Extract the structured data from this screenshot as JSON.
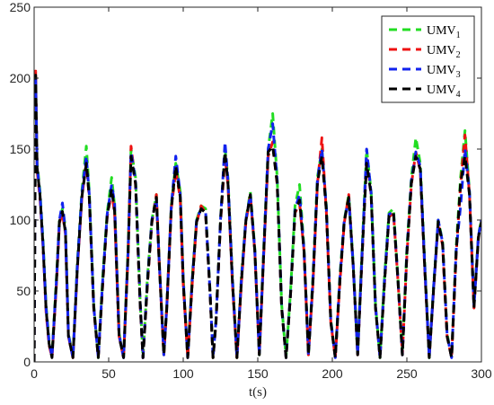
{
  "chart_data": {
    "type": "line",
    "title": "",
    "xlabel": "t(s)",
    "ylabel": "",
    "xlim": [
      0,
      300
    ],
    "ylim": [
      0,
      250
    ],
    "xticks": [
      0,
      50,
      100,
      150,
      200,
      250,
      300
    ],
    "yticks": [
      0,
      50,
      100,
      150,
      200,
      250
    ],
    "grid": false,
    "legend_position": "top-right",
    "series": [
      {
        "name": "UMV1",
        "label_base": "UMV",
        "label_sub": "1",
        "color": "#22dd22",
        "x": [
          0,
          1,
          2,
          4,
          6,
          8,
          10,
          12,
          15,
          17,
          19,
          21,
          23,
          26,
          29,
          32,
          35,
          37,
          40,
          43,
          46,
          49,
          52,
          54,
          57,
          60,
          63,
          65,
          68,
          71,
          73,
          76,
          79,
          82,
          84,
          87,
          89,
          92,
          95,
          98,
          100,
          103,
          106,
          109,
          112,
          115,
          118,
          120,
          122,
          125,
          128,
          130,
          133,
          136,
          139,
          142,
          145,
          148,
          151,
          154,
          157,
          160,
          163,
          166,
          169,
          172,
          175,
          178,
          181,
          184,
          187,
          190,
          193,
          196,
          199,
          202,
          205,
          208,
          211,
          214,
          217,
          220,
          223,
          226,
          229,
          232,
          235,
          238,
          241,
          244,
          247,
          250,
          253,
          256,
          259,
          262,
          265,
          268,
          271,
          274,
          277,
          280,
          283,
          286,
          289,
          292,
          295,
          298,
          300
        ],
        "y": [
          0,
          195,
          140,
          120,
          85,
          40,
          15,
          5,
          60,
          100,
          108,
          95,
          20,
          3,
          70,
          120,
          152,
          120,
          40,
          3,
          60,
          105,
          130,
          110,
          20,
          3,
          80,
          150,
          130,
          45,
          3,
          60,
          100,
          118,
          70,
          5,
          40,
          110,
          140,
          120,
          60,
          3,
          60,
          100,
          110,
          108,
          50,
          3,
          30,
          100,
          150,
          130,
          60,
          3,
          60,
          100,
          120,
          80,
          5,
          80,
          150,
          175,
          130,
          40,
          3,
          50,
          110,
          125,
          80,
          5,
          60,
          130,
          150,
          110,
          30,
          3,
          60,
          100,
          118,
          70,
          5,
          80,
          150,
          120,
          40,
          3,
          60,
          105,
          108,
          60,
          5,
          80,
          130,
          158,
          140,
          70,
          3,
          55,
          100,
          85,
          20,
          3,
          80,
          130,
          163,
          120,
          40,
          90,
          100
        ]
      },
      {
        "name": "UMV2",
        "label_base": "UMV",
        "label_sub": "2",
        "color": "#ee1111",
        "x": [
          0,
          1,
          2,
          4,
          6,
          8,
          10,
          12,
          15,
          17,
          19,
          21,
          23,
          26,
          29,
          32,
          35,
          37,
          40,
          43,
          46,
          49,
          52,
          54,
          57,
          60,
          63,
          65,
          68,
          71,
          73,
          76,
          79,
          82,
          84,
          87,
          89,
          92,
          95,
          98,
          100,
          103,
          106,
          109,
          112,
          115,
          118,
          120,
          122,
          125,
          128,
          130,
          133,
          136,
          139,
          142,
          145,
          148,
          151,
          154,
          157,
          160,
          163,
          166,
          169,
          172,
          175,
          178,
          181,
          184,
          187,
          190,
          193,
          196,
          199,
          202,
          205,
          208,
          211,
          214,
          217,
          220,
          223,
          226,
          229,
          232,
          235,
          238,
          241,
          244,
          247,
          250,
          253,
          256,
          259,
          262,
          265,
          268,
          271,
          274,
          277,
          280,
          283,
          286,
          289,
          292,
          295,
          298,
          300
        ],
        "y": [
          0,
          205,
          135,
          115,
          80,
          35,
          12,
          3,
          55,
          98,
          105,
          90,
          18,
          3,
          65,
          115,
          142,
          115,
          38,
          3,
          55,
          102,
          120,
          105,
          18,
          3,
          75,
          152,
          125,
          42,
          3,
          55,
          98,
          118,
          68,
          5,
          38,
          108,
          135,
          115,
          55,
          3,
          55,
          98,
          110,
          105,
          48,
          3,
          28,
          98,
          145,
          125,
          55,
          3,
          55,
          98,
          118,
          78,
          5,
          75,
          145,
          155,
          125,
          38,
          3,
          48,
          105,
          112,
          78,
          5,
          55,
          125,
          158,
          105,
          28,
          3,
          55,
          98,
          118,
          68,
          5,
          75,
          145,
          118,
          38,
          3,
          55,
          102,
          105,
          58,
          5,
          75,
          125,
          148,
          135,
          65,
          3,
          52,
          98,
          82,
          18,
          3,
          75,
          125,
          160,
          118,
          38,
          88,
          98
        ]
      },
      {
        "name": "UMV3",
        "label_base": "UMV",
        "label_sub": "3",
        "color": "#1122ee",
        "x": [
          0,
          1,
          2,
          4,
          6,
          8,
          10,
          12,
          15,
          17,
          19,
          21,
          23,
          26,
          29,
          32,
          35,
          37,
          40,
          43,
          46,
          49,
          52,
          54,
          57,
          60,
          63,
          65,
          68,
          71,
          73,
          76,
          79,
          82,
          84,
          87,
          89,
          92,
          95,
          98,
          100,
          103,
          106,
          109,
          112,
          115,
          118,
          120,
          122,
          125,
          128,
          130,
          133,
          136,
          139,
          142,
          145,
          148,
          151,
          154,
          157,
          160,
          163,
          166,
          169,
          172,
          175,
          178,
          181,
          184,
          187,
          190,
          193,
          196,
          199,
          202,
          205,
          208,
          211,
          214,
          217,
          220,
          223,
          226,
          229,
          232,
          235,
          238,
          241,
          244,
          247,
          250,
          253,
          256,
          259,
          262,
          265,
          268,
          271,
          274,
          277,
          280,
          283,
          286,
          289,
          292,
          295,
          298,
          300
        ],
        "y": [
          0,
          200,
          138,
          118,
          82,
          38,
          14,
          4,
          58,
          100,
          112,
          92,
          19,
          3,
          68,
          118,
          145,
          118,
          39,
          3,
          58,
          104,
          125,
          112,
          19,
          3,
          78,
          148,
          128,
          44,
          3,
          58,
          100,
          115,
          69,
          5,
          39,
          110,
          145,
          118,
          58,
          3,
          58,
          100,
          108,
          106,
          49,
          3,
          29,
          100,
          155,
          128,
          58,
          3,
          58,
          100,
          118,
          79,
          5,
          78,
          150,
          168,
          128,
          39,
          3,
          49,
          108,
          118,
          79,
          5,
          58,
          128,
          150,
          108,
          29,
          3,
          58,
          100,
          115,
          69,
          5,
          78,
          150,
          119,
          39,
          3,
          58,
          104,
          106,
          59,
          5,
          78,
          128,
          148,
          138,
          68,
          3,
          54,
          100,
          84,
          19,
          3,
          78,
          110,
          150,
          120,
          39,
          89,
          100
        ]
      },
      {
        "name": "UMV4",
        "label_base": "UMV",
        "label_sub": "4",
        "color": "#000000",
        "x": [
          0,
          1,
          2,
          4,
          6,
          8,
          10,
          12,
          15,
          17,
          19,
          21,
          23,
          26,
          29,
          32,
          35,
          37,
          40,
          43,
          46,
          49,
          52,
          54,
          57,
          60,
          63,
          65,
          68,
          71,
          73,
          76,
          79,
          82,
          84,
          87,
          89,
          92,
          95,
          98,
          100,
          103,
          106,
          109,
          112,
          115,
          118,
          120,
          122,
          125,
          128,
          130,
          133,
          136,
          139,
          142,
          145,
          148,
          151,
          154,
          157,
          160,
          163,
          166,
          169,
          172,
          175,
          178,
          181,
          184,
          187,
          190,
          193,
          196,
          199,
          202,
          205,
          208,
          211,
          214,
          217,
          220,
          223,
          226,
          229,
          232,
          235,
          238,
          241,
          244,
          247,
          250,
          253,
          256,
          259,
          262,
          265,
          268,
          271,
          274,
          277,
          280,
          283,
          286,
          289,
          292,
          295,
          298,
          300
        ],
        "y": [
          0,
          202,
          137,
          117,
          81,
          37,
          13,
          3,
          57,
          99,
          106,
          91,
          18,
          3,
          66,
          116,
          140,
          116,
          38,
          3,
          56,
          103,
          122,
          106,
          18,
          3,
          76,
          145,
          126,
          43,
          3,
          56,
          99,
          116,
          68,
          5,
          38,
          108,
          138,
          116,
          56,
          3,
          56,
          99,
          108,
          105,
          48,
          3,
          28,
          99,
          148,
          126,
          56,
          3,
          56,
          99,
          118,
          78,
          5,
          76,
          148,
          152,
          126,
          38,
          3,
          48,
          106,
          114,
          78,
          5,
          56,
          126,
          145,
          106,
          28,
          3,
          56,
          99,
          116,
          68,
          5,
          76,
          140,
          118,
          38,
          3,
          56,
          103,
          105,
          58,
          5,
          76,
          126,
          145,
          136,
          66,
          3,
          53,
          99,
          83,
          18,
          3,
          76,
          126,
          145,
          118,
          38,
          88,
          99
        ]
      }
    ]
  }
}
